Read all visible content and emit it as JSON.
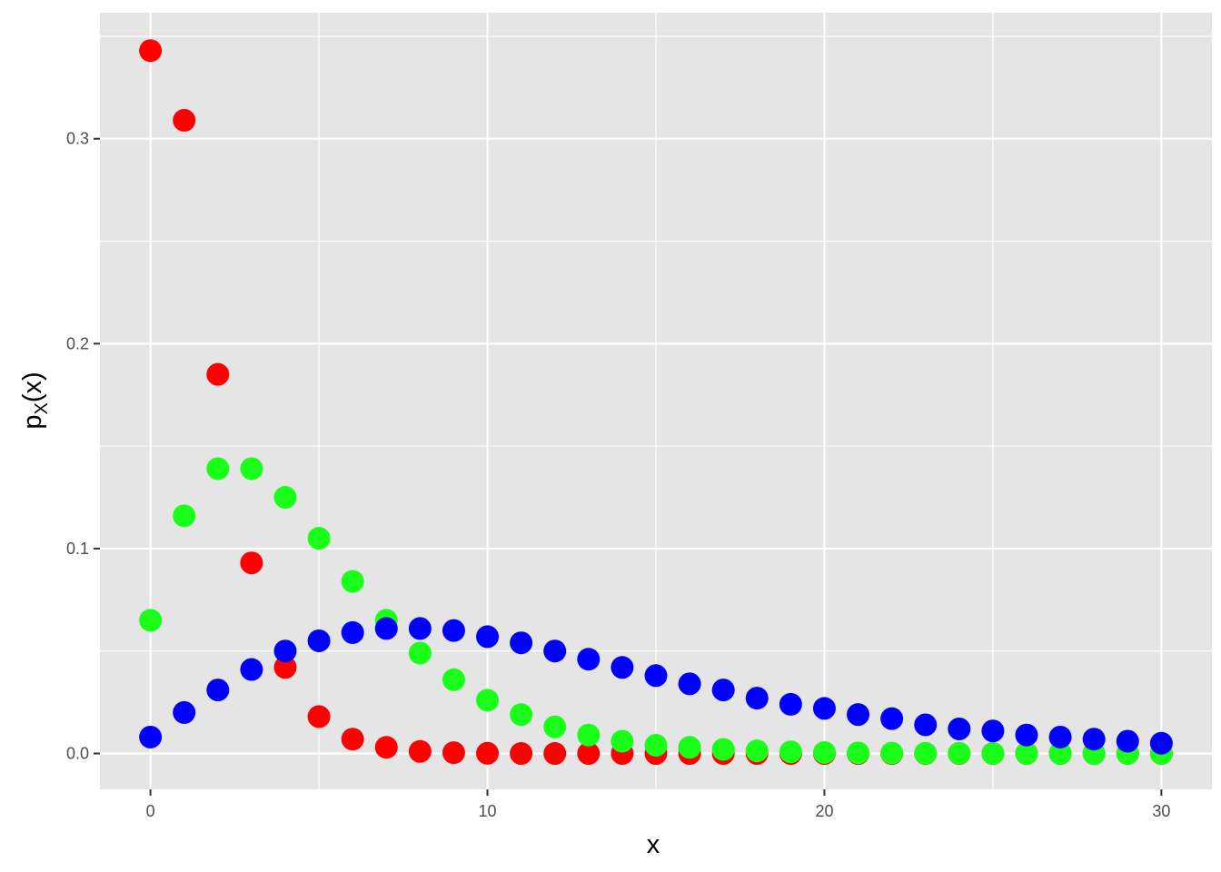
{
  "chart_data": {
    "type": "scatter",
    "xlabel": "x",
    "ylabel_main": "p",
    "ylabel_sub": "X",
    "ylabel_tail": "(x)",
    "xlim": [
      -1.5,
      31.5
    ],
    "ylim": [
      -0.0175,
      0.3615
    ],
    "x_ticks": [
      0,
      10,
      20,
      30
    ],
    "x_tick_labels": [
      "0",
      "10",
      "20",
      "30"
    ],
    "y_ticks": [
      0.0,
      0.1,
      0.2,
      0.3
    ],
    "y_tick_labels": [
      "0.0",
      "0.1",
      "0.2",
      "0.3"
    ],
    "x": [
      0,
      1,
      2,
      3,
      4,
      5,
      6,
      7,
      8,
      9,
      10,
      11,
      12,
      13,
      14,
      15,
      16,
      17,
      18,
      19,
      20,
      21,
      22,
      23,
      24,
      25,
      26,
      27,
      28,
      29,
      30
    ],
    "series": [
      {
        "color": "#ff0000",
        "values": [
          0.343,
          0.309,
          0.185,
          0.093,
          0.042,
          0.018,
          0.007,
          0.003,
          0.001,
          0.0004,
          0.0001,
          0,
          0,
          0,
          0,
          0,
          0,
          0,
          0,
          0,
          0,
          0,
          0,
          0,
          0,
          0,
          0,
          0,
          0,
          0,
          0
        ]
      },
      {
        "color": "#1aff1a",
        "values": [
          0.065,
          0.116,
          0.139,
          0.139,
          0.125,
          0.105,
          0.084,
          0.065,
          0.049,
          0.036,
          0.026,
          0.019,
          0.013,
          0.009,
          0.006,
          0.004,
          0.003,
          0.002,
          0.0013,
          0.0008,
          0.0005,
          0.0003,
          0.0002,
          0.0001,
          0.0001,
          0,
          0,
          0,
          0,
          0,
          0
        ]
      },
      {
        "color": "#0000ff",
        "values": [
          0.008,
          0.02,
          0.031,
          0.041,
          0.05,
          0.055,
          0.059,
          0.061,
          0.061,
          0.06,
          0.057,
          0.054,
          0.05,
          0.046,
          0.042,
          0.038,
          0.034,
          0.031,
          0.027,
          0.024,
          0.022,
          0.019,
          0.017,
          0.014,
          0.012,
          0.011,
          0.009,
          0.008,
          0.007,
          0.006,
          0.005
        ]
      }
    ],
    "panel_color": "#e5e5e5",
    "grid_color": "#ffffff"
  }
}
